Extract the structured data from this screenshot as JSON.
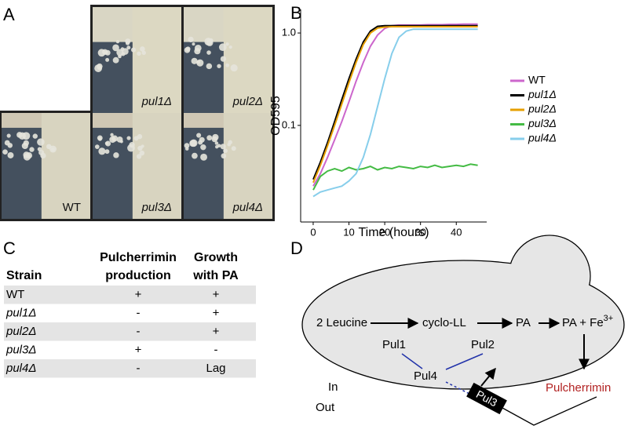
{
  "panel_labels": [
    "A",
    "B",
    "C",
    "D"
  ],
  "panel_a": {
    "labels": [
      "pul1Δ",
      "pul2Δ",
      "WT",
      "pul3Δ",
      "pul4Δ"
    ]
  },
  "chart_data": {
    "type": "line",
    "x_label": "Time (hours)",
    "y_label": "OD595",
    "log_y": true,
    "legend": "right",
    "x": [
      0,
      2,
      4,
      6,
      8,
      10,
      12,
      14,
      16,
      18,
      20,
      22,
      24,
      26,
      28,
      30,
      32,
      34,
      36,
      38,
      40,
      42,
      44,
      46
    ],
    "xlim": [
      -3.5,
      48.5
    ],
    "xticks": [
      0,
      10,
      20,
      30,
      40
    ],
    "ylim": [
      0.009,
      1.8
    ],
    "yticks": [
      0.1,
      {
        "value": 1,
        "label": "1.0"
      }
    ],
    "series": [
      {
        "name": "WT",
        "color": "#cc66cc",
        "values": [
          0.022,
          0.03,
          0.045,
          0.07,
          0.11,
          0.18,
          0.3,
          0.48,
          0.72,
          0.95,
          1.12,
          1.2,
          1.22,
          1.22,
          1.22,
          1.22,
          1.23,
          1.23,
          1.23,
          1.24,
          1.24,
          1.25,
          1.25,
          1.25
        ]
      },
      {
        "name": "pul1Δ",
        "color": "#000000",
        "values": [
          0.026,
          0.04,
          0.065,
          0.11,
          0.19,
          0.32,
          0.52,
          0.8,
          1.05,
          1.18,
          1.2,
          1.2,
          1.2,
          1.2,
          1.2,
          1.2,
          1.2,
          1.2,
          1.2,
          1.2,
          1.2,
          1.2,
          1.2,
          1.2
        ]
      },
      {
        "name": "pul2Δ",
        "color": "#e69f00",
        "values": [
          0.024,
          0.037,
          0.06,
          0.1,
          0.17,
          0.29,
          0.48,
          0.75,
          1.0,
          1.13,
          1.16,
          1.17,
          1.17,
          1.17,
          1.17,
          1.17,
          1.17,
          1.17,
          1.17,
          1.17,
          1.17,
          1.17,
          1.17,
          1.17
        ]
      },
      {
        "name": "pul3Δ",
        "color": "#44bb44",
        "values": [
          0.02,
          0.028,
          0.032,
          0.034,
          0.032,
          0.035,
          0.033,
          0.034,
          0.036,
          0.033,
          0.035,
          0.034,
          0.036,
          0.035,
          0.034,
          0.036,
          0.035,
          0.037,
          0.035,
          0.036,
          0.037,
          0.036,
          0.038,
          0.037
        ]
      },
      {
        "name": "pul4Δ",
        "color": "#87ceeb",
        "values": [
          0.017,
          0.019,
          0.02,
          0.021,
          0.022,
          0.025,
          0.03,
          0.045,
          0.08,
          0.16,
          0.32,
          0.6,
          0.9,
          1.05,
          1.1,
          1.1,
          1.1,
          1.1,
          1.1,
          1.1,
          1.1,
          1.1,
          1.1,
          1.1
        ]
      }
    ]
  },
  "table": {
    "header": [
      "Strain",
      [
        "Pulcherrimin",
        "production"
      ],
      [
        "Growth",
        "with PA"
      ]
    ],
    "rows": [
      [
        "WT",
        "+",
        "+"
      ],
      [
        "pul1Δ",
        "-",
        "+"
      ],
      [
        "pul2Δ",
        "-",
        "+"
      ],
      [
        "pul3Δ",
        "+",
        "-"
      ],
      [
        "pul4Δ",
        "-",
        "Lag"
      ]
    ]
  },
  "diagram": {
    "nodes": [
      "2 Leucine",
      "cyclo-LL",
      "PA",
      {
        "text": "PA + Fe",
        "superscript": "3+"
      },
      "Pulcherrimin",
      "Pul1",
      "Pul2",
      "Pul4",
      "Pul3",
      "In",
      "Out"
    ]
  }
}
